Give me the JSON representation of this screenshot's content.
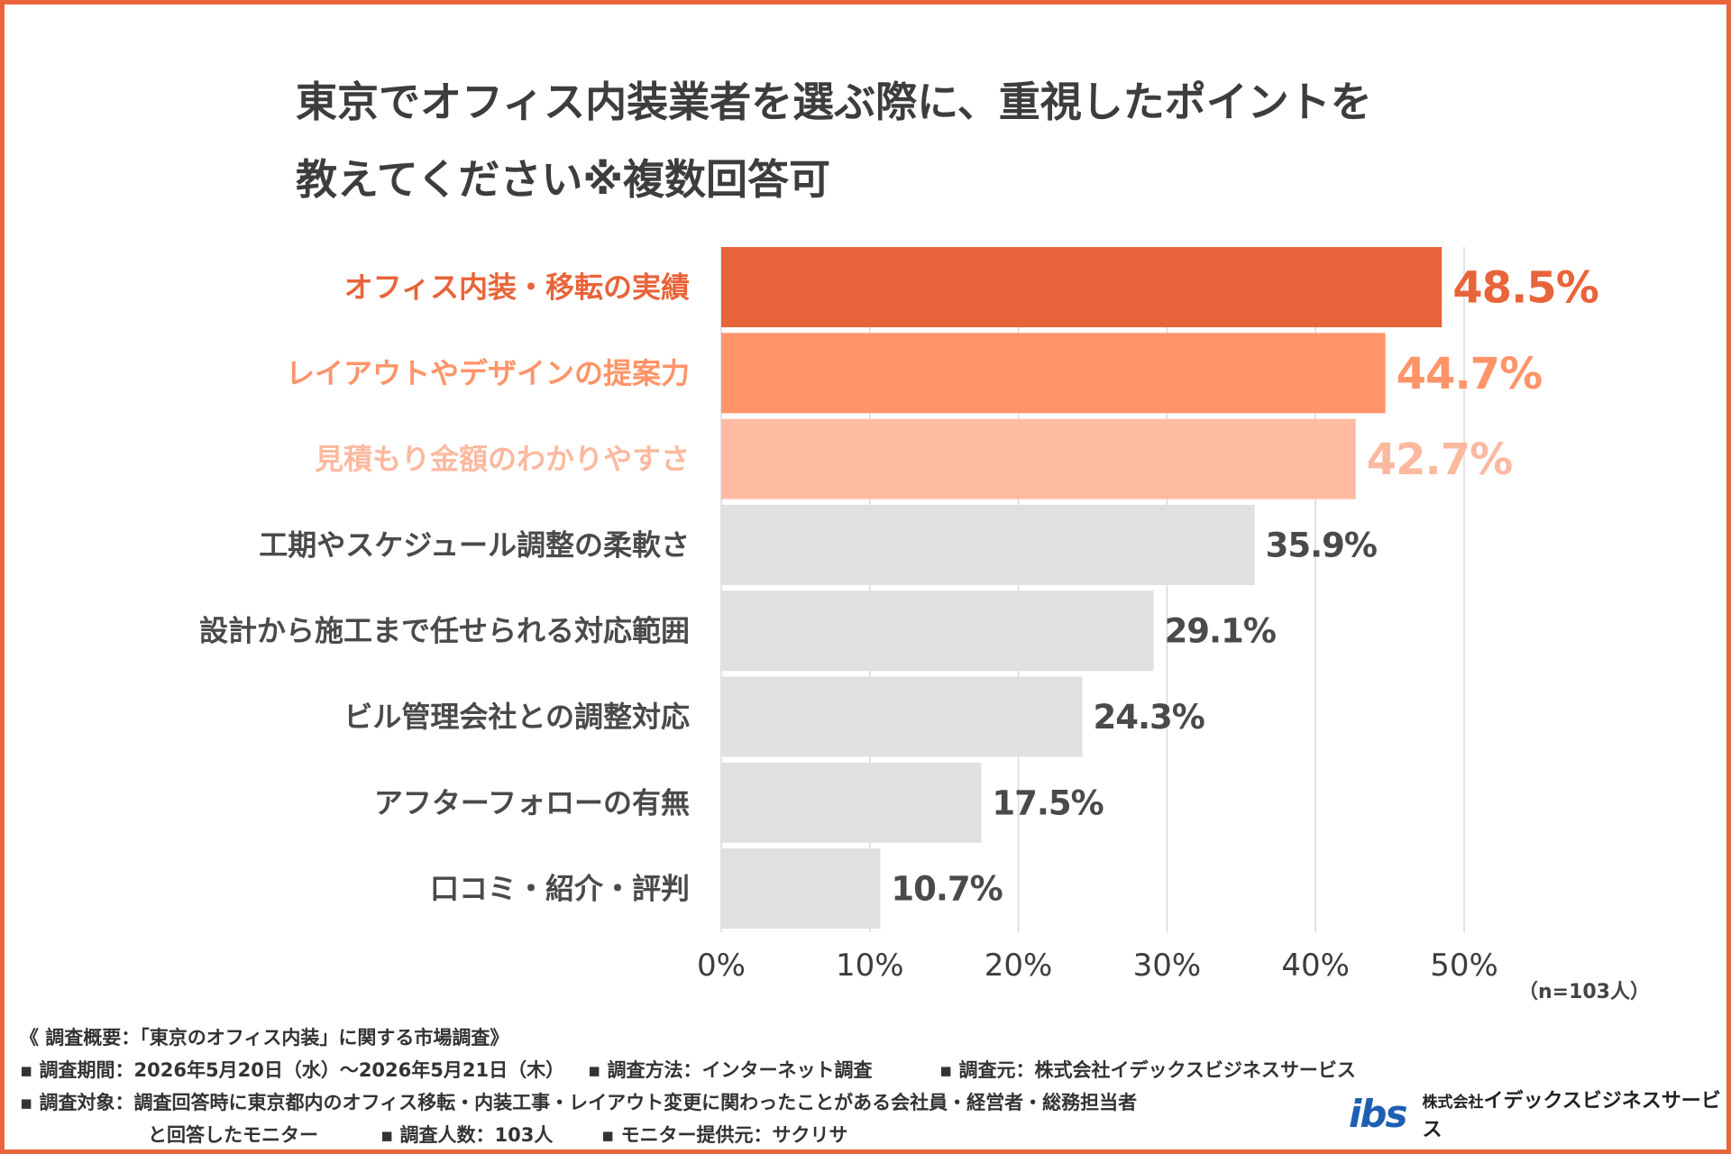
{
  "title": {
    "line1": "東京でオフィス内装業者を選ぶ際に、重視したポイントを",
    "line2": "教えてください※複数回答可"
  },
  "chart_data": {
    "type": "bar",
    "orientation": "horizontal",
    "categories": [
      "オフィス内装・移転の実績",
      "レイアウトやデザインの提案力",
      "見積もり金額のわかりやすさ",
      "工期やスケジュール調整の柔軟さ",
      "設計から施工まで任せられる対応範囲",
      "ビル管理会社との調整対応",
      "アフターフォローの有無",
      "口コミ・紹介・評判"
    ],
    "values": [
      48.5,
      44.7,
      42.7,
      35.9,
      29.1,
      24.3,
      17.5,
      10.7
    ],
    "value_labels": [
      "48.5%",
      "44.7%",
      "42.7%",
      "35.9%",
      "29.1%",
      "24.3%",
      "17.5%",
      "10.7%"
    ],
    "bar_colors": [
      "#e8643a",
      "#ff9469",
      "#ffbba2",
      "#e0e0e0",
      "#e0e0e0",
      "#e0e0e0",
      "#e0e0e0",
      "#e0e0e0"
    ],
    "label_colors": [
      "#e8643a",
      "#ff9469",
      "#fcb9a0",
      "#4a4a4a",
      "#4a4a4a",
      "#4a4a4a",
      "#4a4a4a",
      "#4a4a4a"
    ],
    "xlim": [
      0,
      50
    ],
    "xticks": [
      0,
      10,
      20,
      30,
      40,
      50
    ],
    "xtick_labels": [
      "0%",
      "10%",
      "20%",
      "30%",
      "40%",
      "50%"
    ],
    "grid": true,
    "legend": "none"
  },
  "sample_note": "（n=103人）",
  "footer": {
    "heading": "《 調査概要：「東京のオフィス内装」に関する市場調査》",
    "period": "▪ 調査期間：2026年5月20日（水）〜2026年5月21日（木）",
    "method": "▪ 調査方法：インターネット調査",
    "source": "▪ 調査元：株式会社イデックスビジネスサービス",
    "target": "▪ 調査対象：調査回答時に東京都内のオフィス移転・内装工事・レイアウト変更に関わったことがある会社員・経営者・総務担当者",
    "target_cont": "と回答したモニター",
    "count": "▪ 調査人数：103人",
    "provider": "▪ モニター提供元：サクリサ"
  },
  "logo": {
    "mark": "ibs",
    "prefix": "株式会社",
    "name": "イデックスビジネスサービス"
  }
}
